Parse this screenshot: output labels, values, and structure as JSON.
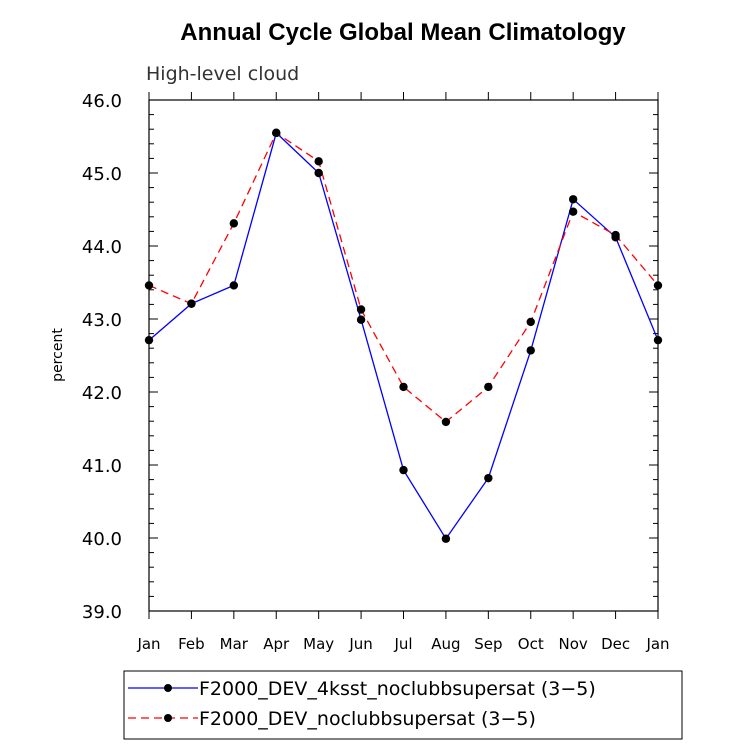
{
  "chart_data": {
    "type": "line",
    "title": "Annual Cycle Global Mean Climatology",
    "subtitle": "High-level cloud",
    "xlabel": "",
    "ylabel": "percent",
    "ylim": [
      39.0,
      46.0
    ],
    "yticks": [
      "39.0",
      "40.0",
      "41.0",
      "42.0",
      "43.0",
      "44.0",
      "45.0",
      "46.0"
    ],
    "categories": [
      "Jan",
      "Feb",
      "Mar",
      "Apr",
      "May",
      "Jun",
      "Jul",
      "Aug",
      "Sep",
      "Oct",
      "Nov",
      "Dec",
      "Jan"
    ],
    "series": [
      {
        "name": "F2000_DEV_4ksst_noclubbsupersat (3−5)",
        "color": "#0000ff",
        "dash": "solid",
        "values": [
          42.71,
          43.21,
          43.46,
          45.55,
          45.0,
          42.99,
          40.93,
          39.99,
          40.82,
          42.57,
          44.64,
          44.12,
          42.71
        ]
      },
      {
        "name": "F2000_DEV_noclubbsupersat (3−5)",
        "color": "#ff0000",
        "dash": "dashed",
        "values": [
          43.46,
          43.21,
          44.31,
          45.55,
          45.16,
          43.13,
          42.07,
          41.59,
          42.07,
          42.96,
          44.47,
          44.15,
          43.46
        ]
      }
    ],
    "legend": "bottom"
  }
}
